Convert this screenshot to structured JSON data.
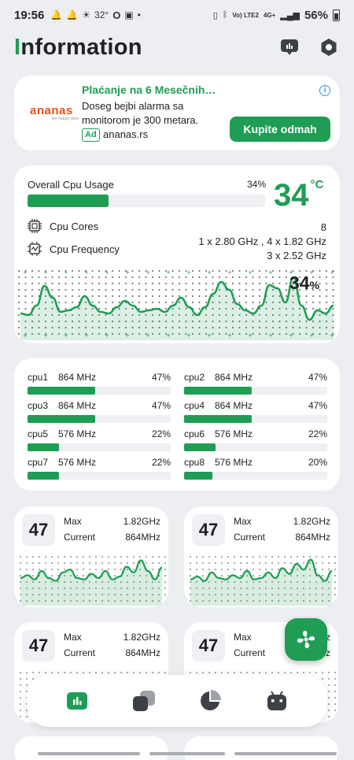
{
  "status_bar": {
    "time": "19:56",
    "temperature": "32°",
    "network": "Vo) LTE2",
    "network_type": "4G+",
    "battery": "56%"
  },
  "header": {
    "title_first": "I",
    "title_rest": "nformation",
    "icons": [
      "device-icon",
      "settings-hexagon-icon"
    ]
  },
  "ad": {
    "brand": "ananas",
    "brand_sub": "the happy store",
    "title": "Plaćanje na 6 Mesečnih…",
    "text": "Doseg bejbi alarma sa monitorom je 300 metara.",
    "badge": "Ad",
    "site": "ananas.rs",
    "cta": "Kupite odmah",
    "info": "i"
  },
  "overall": {
    "label": "Overall Cpu Usage",
    "percent_text": "34%",
    "percent": 34,
    "temperature": "34",
    "temperature_unit": "°C",
    "cores_label": "Cpu Cores",
    "cores_value": "8",
    "freq_label": "Cpu Frequency",
    "freq_value_line1": "1 x 2.80 GHz , 4 x 1.82 GHz",
    "freq_value_line2": "3 x 2.52 GHz",
    "chart_percent": "34",
    "chart_percent_unit": "%",
    "history": [
      20,
      18,
      30,
      55,
      40,
      22,
      24,
      28,
      42,
      30,
      22,
      20,
      28,
      36,
      30,
      22,
      24,
      26,
      22,
      30,
      40,
      28,
      18,
      28,
      45,
      60,
      50,
      32,
      24,
      20,
      30,
      56,
      52,
      34,
      66,
      30,
      12,
      24,
      20,
      30
    ]
  },
  "cores": [
    {
      "name": "cpu1",
      "freq": "864 MHz",
      "pct_text": "47%",
      "pct": 47
    },
    {
      "name": "cpu2",
      "freq": "864 MHz",
      "pct_text": "47%",
      "pct": 47
    },
    {
      "name": "cpu3",
      "freq": "864 MHz",
      "pct_text": "47%",
      "pct": 47
    },
    {
      "name": "cpu4",
      "freq": "864 MHz",
      "pct_text": "47%",
      "pct": 47
    },
    {
      "name": "cpu5",
      "freq": "576 MHz",
      "pct_text": "22%",
      "pct": 22
    },
    {
      "name": "cpu6",
      "freq": "576 MHz",
      "pct_text": "22%",
      "pct": 22
    },
    {
      "name": "cpu7",
      "freq": "576 MHz",
      "pct_text": "22%",
      "pct": 22
    },
    {
      "name": "cpu8",
      "freq": "576 MHz",
      "pct_text": "20%",
      "pct": 20
    }
  ],
  "core_cards": [
    {
      "num": "47",
      "max_label": "Max",
      "max": "1.82GHz",
      "cur_label": "Current",
      "cur": "864MHz",
      "history": [
        30,
        34,
        28,
        40,
        30,
        26,
        38,
        42,
        30,
        28,
        36,
        30,
        40,
        28,
        32,
        46,
        38,
        55,
        40,
        28,
        45
      ]
    },
    {
      "num": "47",
      "max_label": "Max",
      "max": "1.82GHz",
      "cur_label": "Current",
      "cur": "864MHz",
      "history": [
        28,
        32,
        26,
        38,
        30,
        28,
        34,
        30,
        40,
        28,
        30,
        38,
        30,
        44,
        36,
        50,
        42,
        56,
        34,
        26,
        40
      ]
    },
    {
      "num": "47",
      "max_label": "Max",
      "max": "1.82GHz",
      "cur_label": "Current",
      "cur": "864MHz",
      "history": []
    },
    {
      "num": "47",
      "max_label": "Max",
      "max": "1.82GHz",
      "cur_label": "Current",
      "cur": "864MHz",
      "history": []
    }
  ],
  "nav": [
    "dashboard-icon",
    "layers-icon",
    "pie-chart-icon",
    "android-icon"
  ],
  "colors": {
    "accent": "#1f9d55",
    "background": "#eceef2",
    "card": "#ffffff"
  }
}
